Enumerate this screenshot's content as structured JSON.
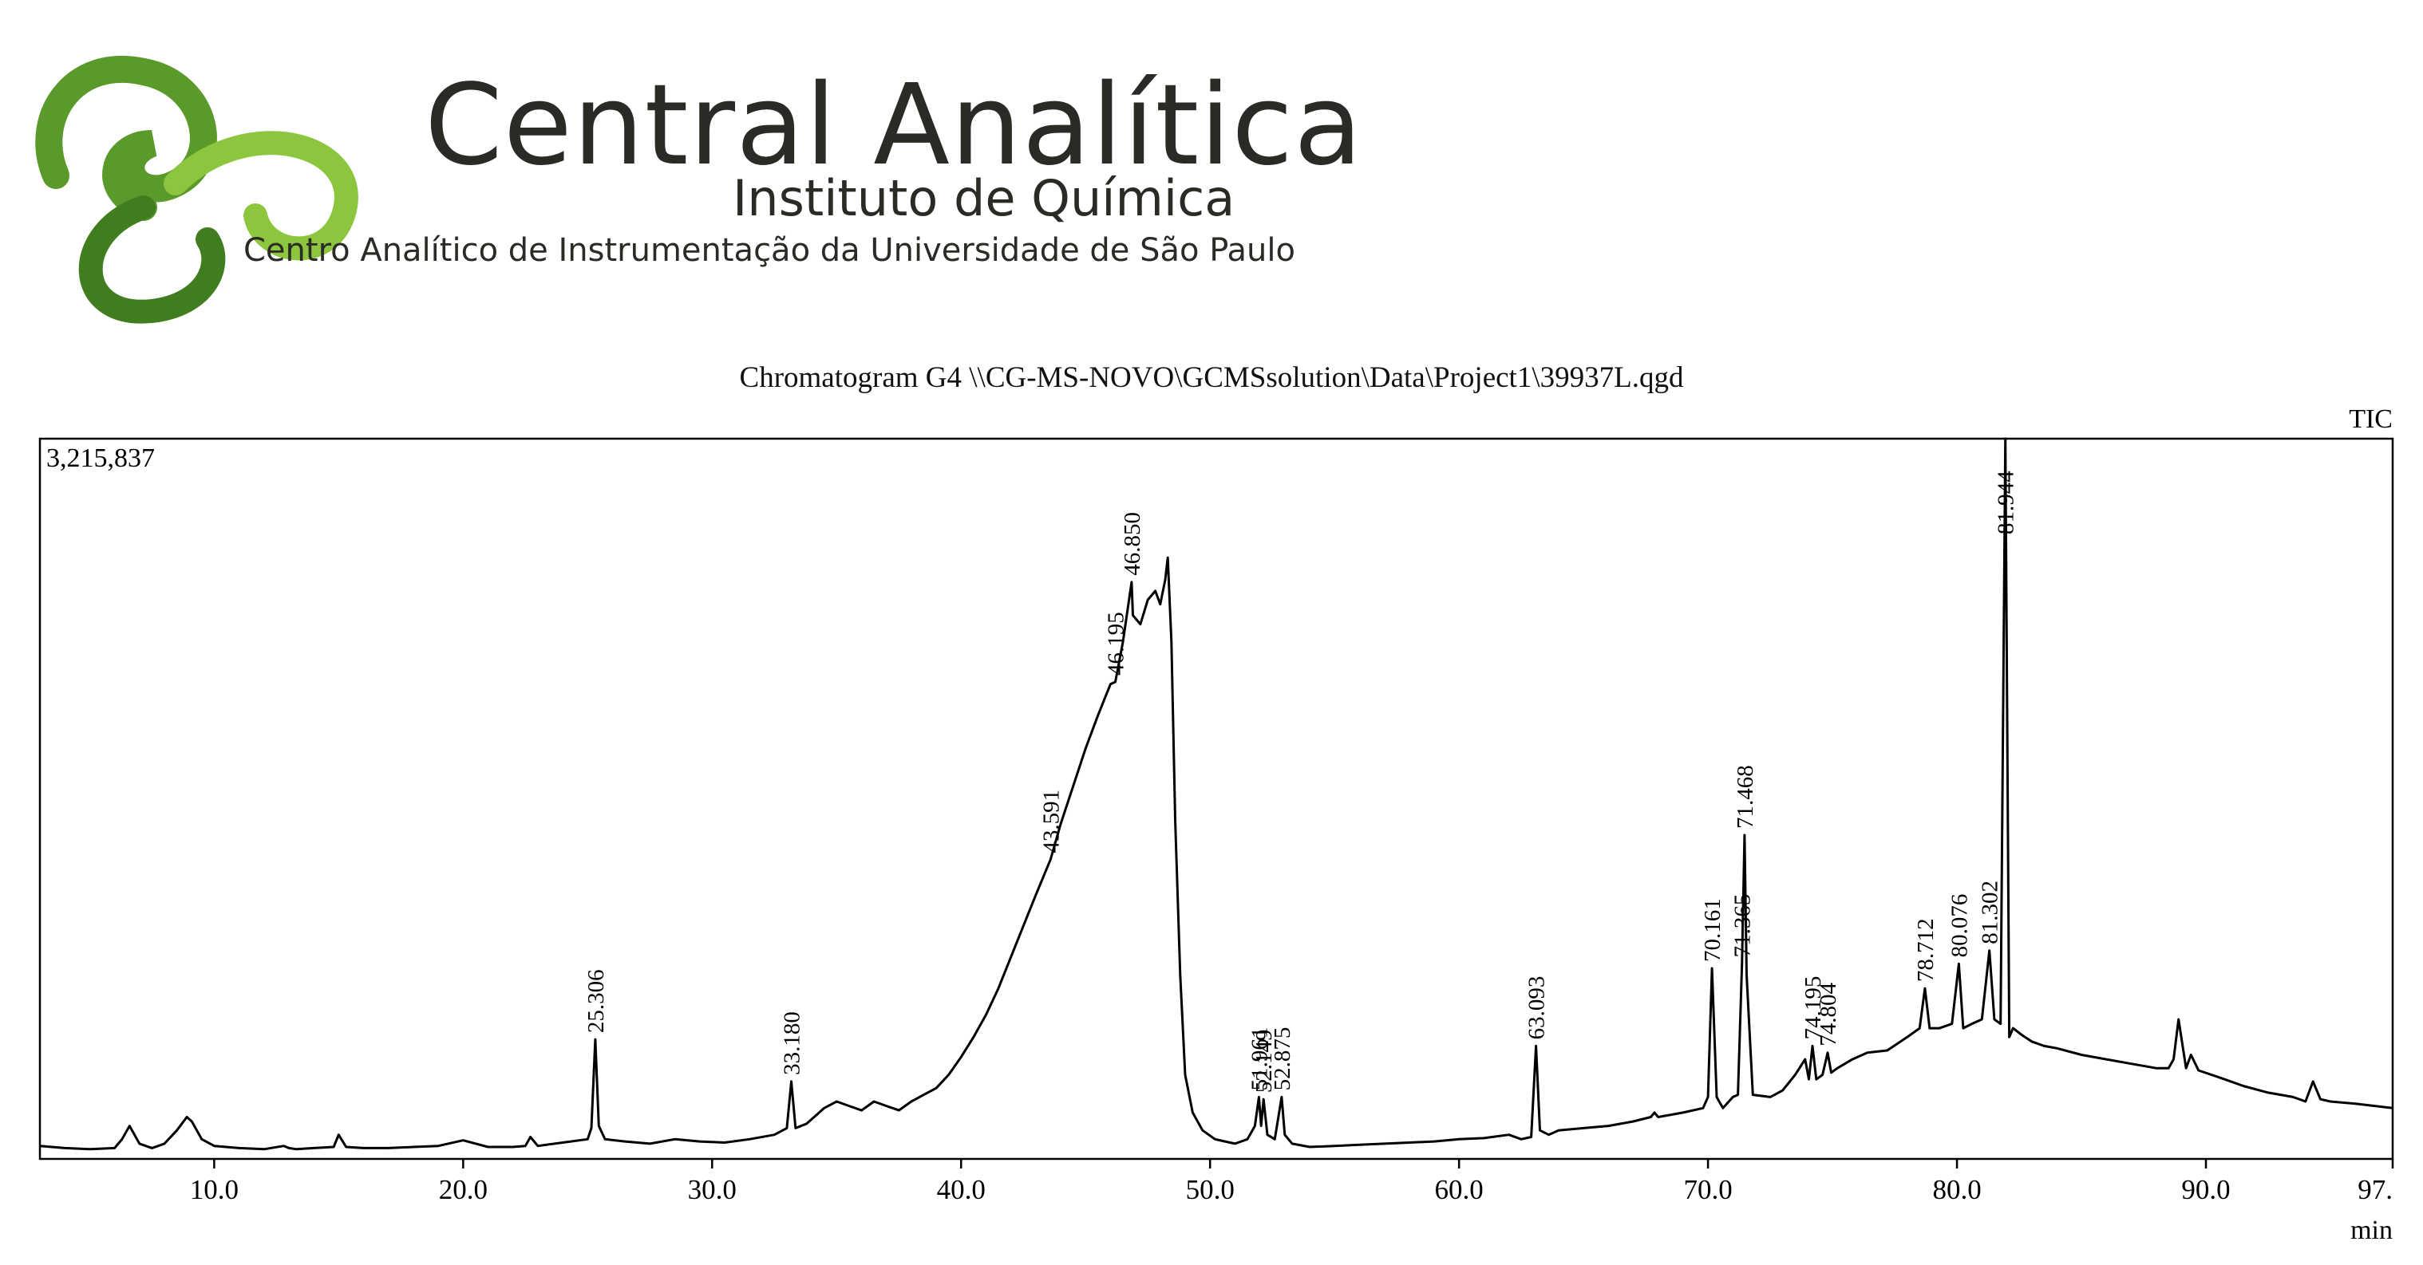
{
  "logo": {
    "title": "Central Analítica",
    "subtitle": "Instituto de Química",
    "description": "Centro Analítico de Instrumentação da Universidade de São Paulo",
    "colors": {
      "green_light": "#8cc63f",
      "green_dark": "#3f7d1e",
      "text": "#2b2b26"
    }
  },
  "chart_data": {
    "type": "line",
    "title": "Chromatogram G4 \\\\CG-MS-NOVO\\GCMSsolution\\Data\\Project1\\39937L.qgd",
    "signal_label": "TIC",
    "ymax_label": "3,215,837",
    "xlabel": "min",
    "xlim": [
      3.0,
      97.5
    ],
    "ylim": [
      0,
      3215837
    ],
    "x_ticks": [
      10,
      20,
      30,
      40,
      50,
      60,
      70,
      80,
      90,
      97.5
    ],
    "x_tick_labels": [
      "10.0",
      "20.0",
      "30.0",
      "40.0",
      "50.0",
      "60.0",
      "70.0",
      "80.0",
      "90.0",
      "97."
    ],
    "series": [
      {
        "x": [
          3.0,
          4.0,
          5.0,
          6.0,
          6.3,
          6.6,
          7.0,
          7.5,
          8.0,
          8.5,
          8.9,
          9.1,
          9.5,
          10.0,
          11.0,
          12.0,
          12.8,
          13.0,
          13.3,
          14.0,
          14.8,
          15.0,
          15.3,
          16.0,
          17.0,
          18.0,
          19.0,
          20.0,
          21.0,
          22.0,
          22.5,
          22.7,
          23.0,
          24.0,
          25.0,
          25.15,
          25.306,
          25.45,
          25.7,
          26.5,
          27.5,
          28.5,
          29.5,
          30.5,
          31.5,
          32.5,
          33.0,
          33.18,
          33.35,
          33.8,
          34.5,
          35.0,
          35.5,
          36.0,
          36.5,
          37.0,
          37.5,
          38.0,
          38.5,
          39.0,
          39.5,
          40.0,
          40.5,
          41.0,
          41.5,
          42.0,
          42.5,
          43.0,
          43.591,
          44.0,
          44.5,
          45.0,
          45.5,
          46.0,
          46.195,
          46.5,
          46.85,
          46.9,
          47.2,
          47.5,
          47.8,
          48.0,
          48.2,
          48.3,
          48.45,
          48.6,
          48.8,
          49.0,
          49.3,
          49.7,
          50.2,
          51.0,
          51.5,
          51.8,
          51.961,
          52.05,
          52.149,
          52.3,
          52.6,
          52.875,
          53.0,
          53.3,
          54.0,
          55.0,
          56.0,
          57.0,
          58.0,
          59.0,
          60.0,
          61.0,
          62.0,
          62.5,
          62.9,
          63.093,
          63.25,
          63.6,
          64.0,
          65.0,
          66.0,
          67.0,
          67.7,
          67.85,
          68.0,
          69.0,
          69.8,
          70.0,
          70.161,
          70.35,
          70.6,
          71.0,
          71.2,
          71.365,
          71.468,
          71.55,
          71.8,
          72.5,
          73.0,
          73.5,
          73.9,
          74.05,
          74.195,
          74.35,
          74.6,
          74.804,
          74.95,
          75.2,
          75.8,
          76.4,
          77.2,
          78.0,
          78.5,
          78.712,
          78.9,
          79.3,
          79.8,
          80.076,
          80.25,
          80.6,
          81.0,
          81.302,
          81.5,
          81.75,
          81.944,
          82.1,
          82.25,
          82.6,
          83.0,
          83.5,
          84.0,
          85.0,
          86.0,
          87.0,
          88.0,
          88.5,
          88.7,
          88.9,
          89.2,
          89.4,
          89.7,
          90.5,
          91.5,
          92.5,
          93.5,
          94.0,
          94.3,
          94.6,
          95.0,
          96.0,
          97.5
        ],
        "y": [
          30000,
          20000,
          15000,
          20000,
          60000,
          120000,
          40000,
          20000,
          40000,
          100000,
          160000,
          140000,
          60000,
          30000,
          20000,
          15000,
          30000,
          20000,
          15000,
          20000,
          25000,
          80000,
          25000,
          20000,
          20000,
          25000,
          30000,
          55000,
          25000,
          25000,
          30000,
          70000,
          30000,
          45000,
          60000,
          110000,
          510000,
          120000,
          60000,
          50000,
          40000,
          60000,
          50000,
          45000,
          60000,
          80000,
          110000,
          320000,
          110000,
          130000,
          200000,
          230000,
          210000,
          190000,
          230000,
          210000,
          190000,
          230000,
          260000,
          290000,
          350000,
          430000,
          520000,
          620000,
          740000,
          880000,
          1020000,
          1160000,
          1320000,
          1480000,
          1650000,
          1820000,
          1970000,
          2110000,
          2120000,
          2300000,
          2570000,
          2420000,
          2380000,
          2490000,
          2530000,
          2470000,
          2580000,
          2680000,
          2300000,
          1500000,
          800000,
          350000,
          180000,
          100000,
          60000,
          40000,
          60000,
          120000,
          250000,
          120000,
          240000,
          80000,
          60000,
          250000,
          80000,
          40000,
          25000,
          30000,
          35000,
          40000,
          45000,
          50000,
          60000,
          65000,
          80000,
          60000,
          70000,
          480000,
          100000,
          80000,
          100000,
          110000,
          120000,
          140000,
          160000,
          180000,
          160000,
          180000,
          200000,
          250000,
          830000,
          250000,
          200000,
          250000,
          260000,
          850000,
          1430000,
          800000,
          260000,
          250000,
          280000,
          350000,
          420000,
          330000,
          480000,
          330000,
          350000,
          450000,
          360000,
          380000,
          420000,
          450000,
          460000,
          520000,
          560000,
          740000,
          560000,
          560000,
          580000,
          850000,
          560000,
          580000,
          600000,
          910000,
          600000,
          580000,
          3215837,
          520000,
          560000,
          530000,
          500000,
          480000,
          470000,
          440000,
          420000,
          400000,
          380000,
          380000,
          420000,
          600000,
          380000,
          440000,
          370000,
          340000,
          300000,
          270000,
          250000,
          230000,
          320000,
          240000,
          230000,
          220000,
          200000
        ]
      }
    ],
    "peak_labels": [
      {
        "x": 25.306,
        "label": "25.306"
      },
      {
        "x": 33.18,
        "label": "33.180"
      },
      {
        "x": 43.591,
        "label": "43.591"
      },
      {
        "x": 46.195,
        "label": "46.195"
      },
      {
        "x": 46.85,
        "label": "46.850"
      },
      {
        "x": 51.961,
        "label": "51.961"
      },
      {
        "x": 52.149,
        "label": "52.149"
      },
      {
        "x": 52.875,
        "label": "52.875"
      },
      {
        "x": 63.093,
        "label": "63.093"
      },
      {
        "x": 70.161,
        "label": "70.161"
      },
      {
        "x": 71.365,
        "label": "71.365"
      },
      {
        "x": 71.468,
        "label": "71.468"
      },
      {
        "x": 74.195,
        "label": "74.195"
      },
      {
        "x": 74.804,
        "label": "74.804"
      },
      {
        "x": 78.712,
        "label": "78.712"
      },
      {
        "x": 80.076,
        "label": "80.076"
      },
      {
        "x": 81.302,
        "label": "81.302"
      },
      {
        "x": 81.944,
        "label": "81.944"
      }
    ],
    "grid": false
  }
}
